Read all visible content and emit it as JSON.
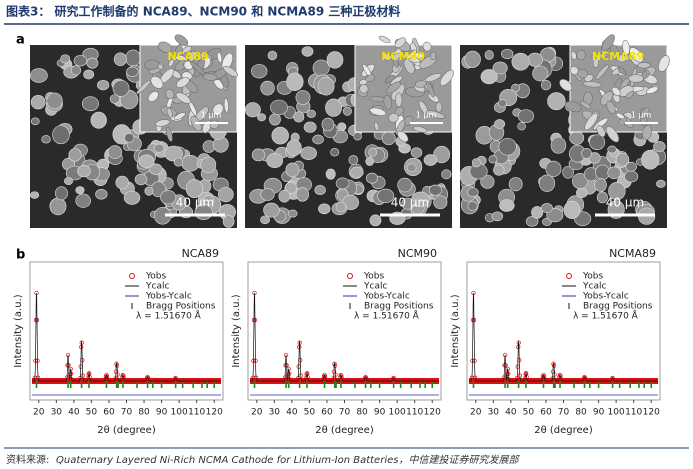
{
  "header": {
    "title": "图表3： 研究工作制备的 NCA89、NCM90 和 NCMA89 三种正极材料"
  },
  "panel_a": {
    "label": "a",
    "images": [
      {
        "name": "NCA89",
        "scale": "40 μm",
        "inset_scale": "1 μm"
      },
      {
        "name": "NCM90",
        "scale": "40 μm",
        "inset_scale": "1 μm"
      },
      {
        "name": "NCMA89",
        "scale": "40 μm",
        "inset_scale": "1 μm"
      }
    ]
  },
  "panel_b": {
    "label": "b",
    "x_axis_label": "2θ (degree)",
    "y_axis_label": "Intensity (a.u.)",
    "legend": [
      "Yobs",
      "Ycalc",
      "Yobs-Ycalc",
      "Bragg Positions"
    ],
    "wavelength": "λ = 1.51670 Å",
    "xlim": [
      15,
      125
    ],
    "xticks": [
      20,
      30,
      40,
      50,
      60,
      70,
      80,
      90,
      100,
      110,
      120
    ],
    "plots": [
      {
        "name": "NCA89"
      },
      {
        "name": "NCM90"
      },
      {
        "name": "NCMA89"
      }
    ]
  },
  "footer": {
    "label": "资料来源:",
    "source": "Quaternary Layered Ni-Rich NCMA Cathode for Lithium-Ion Batteries，中信建投证券研究发展部"
  }
}
